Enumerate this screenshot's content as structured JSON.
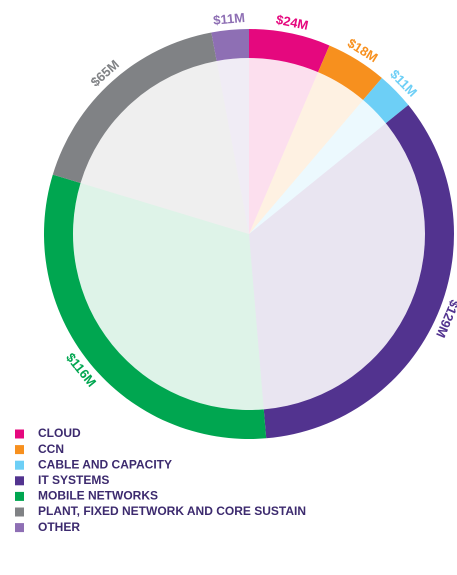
{
  "chart_data": {
    "type": "pie",
    "categories": [
      "CLOUD",
      "CCN",
      "CABLE AND CAPACITY",
      "IT SYSTEMS",
      "MOBILE NETWORKS",
      "PLANT, FIXED NETWORK AND CORE SUSTAIN",
      "OTHER"
    ],
    "values": [
      24,
      18,
      11,
      129,
      116,
      65,
      11
    ],
    "value_labels": [
      "$24M",
      "$18M",
      "$11M",
      "$129M",
      "$116M",
      "$65M",
      "$11M"
    ],
    "colors": [
      "#e5087e",
      "#f7901e",
      "#6dcff6",
      "#52338f",
      "#00a650",
      "#808285",
      "#8e6fb4"
    ],
    "legend": "bottom-left"
  }
}
